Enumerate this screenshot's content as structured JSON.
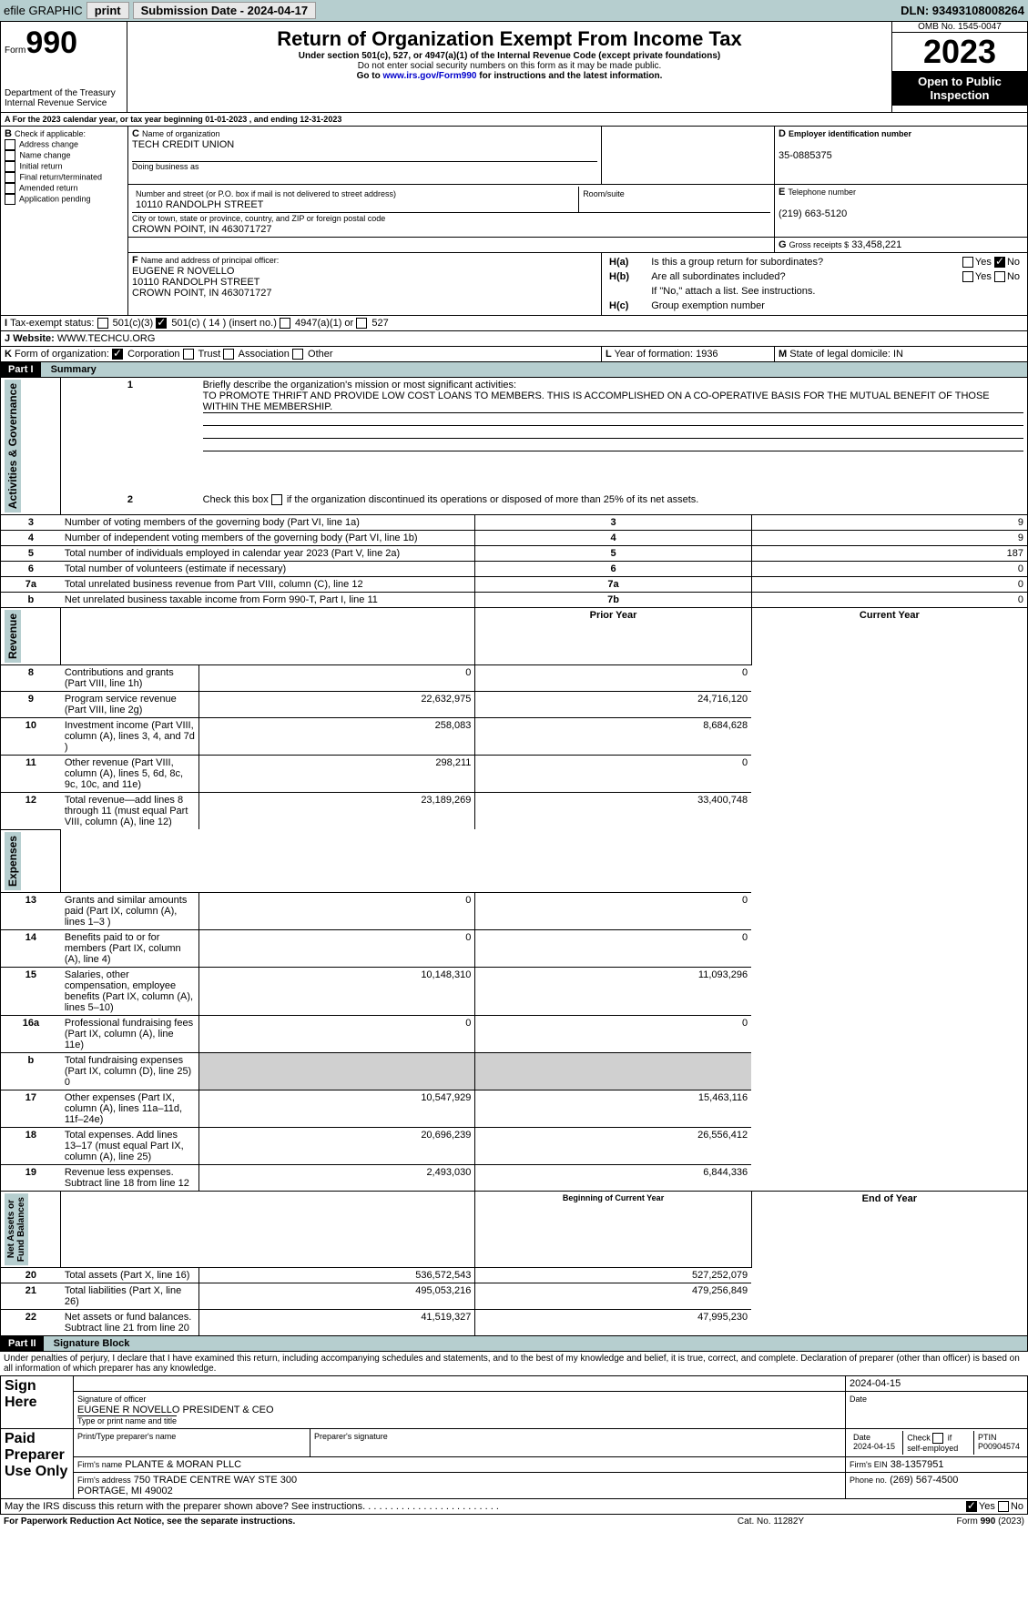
{
  "topbar": {
    "efile": "efile GRAPHIC",
    "print": "print",
    "submission": "Submission Date - 2024-04-17",
    "dln": "DLN: 93493108008264"
  },
  "header": {
    "form_word": "Form",
    "form_num": "990",
    "title": "Return of Organization Exempt From Income Tax",
    "subtitle": "Under section 501(c), 527, or 4947(a)(1) of the Internal Revenue Code (except private foundations)",
    "warn": "Do not enter social security numbers on this form as it may be made public.",
    "goto": "Go to ",
    "goto_link": "www.irs.gov/Form990",
    "goto_rest": " for instructions and the latest information.",
    "dept": "Department of the Treasury\nInternal Revenue Service",
    "omb": "OMB No. 1545-0047",
    "year": "2023",
    "open": "Open to Public\nInspection"
  },
  "A": {
    "text": "For the 2023 calendar year, or tax year beginning 01-01-2023    , and ending 12-31-2023"
  },
  "B": {
    "label": "Check if applicable:",
    "items": [
      "Address change",
      "Name change",
      "Initial return",
      "Final return/terminated",
      "Amended return",
      "Application pending"
    ]
  },
  "C": {
    "name_lbl": "Name of organization",
    "name": "TECH CREDIT UNION",
    "dba_lbl": "Doing business as",
    "addr_lbl": "Number and street (or P.O. box if mail is not delivered to street address)",
    "room_lbl": "Room/suite",
    "addr": "10110 RANDOLPH STREET",
    "city_lbl": "City or town, state or province, country, and ZIP or foreign postal code",
    "city": "CROWN POINT, IN  463071727"
  },
  "D": {
    "lbl": "Employer identification number",
    "val": "35-0885375"
  },
  "E": {
    "lbl": "Telephone number",
    "val": "(219) 663-5120"
  },
  "G": {
    "lbl": "Gross receipts $",
    "val": "33,458,221"
  },
  "F": {
    "lbl": "Name and address of principal officer:",
    "lines": [
      "EUGENE R NOVELLO",
      "10110 RANDOLPH STREET",
      "CROWN POINT, IN  463071727"
    ]
  },
  "H": {
    "a": "Is this a group return for subordinates?",
    "b": "Are all subordinates included?",
    "b_note": "If \"No,\" attach a list. See instructions.",
    "c": "Group exemption number",
    "yes": "Yes",
    "no": "No"
  },
  "I": {
    "lbl": "Tax-exempt status:",
    "o1": "501(c)(3)",
    "o2": "501(c) ( 14 ) (insert no.)",
    "o3": "4947(a)(1) or",
    "o4": "527"
  },
  "J": {
    "lbl": "Website:",
    "val": "WWW.TECHCU.ORG"
  },
  "K": {
    "lbl": "Form of organization:",
    "o1": "Corporation",
    "o2": "Trust",
    "o3": "Association",
    "o4": "Other"
  },
  "L": {
    "lbl": "Year of formation:",
    "val": "1936"
  },
  "M": {
    "lbl": "State of legal domicile:",
    "val": "IN"
  },
  "part1": {
    "hdr": "Part I",
    "title": "Summary",
    "l1_lbl": "Briefly describe the organization's mission or most significant activities:",
    "l1_val": "TO PROMOTE THRIFT AND PROVIDE LOW COST LOANS TO MEMBERS. THIS IS ACCOMPLISHED ON A CO-OPERATIVE BASIS FOR THE MUTUAL BENEFIT OF THOSE WITHIN THE MEMBERSHIP.",
    "l2": "Check this box       if the organization discontinued its operations or disposed of more than 25% of its net assets.",
    "rows_ag": [
      {
        "n": "3",
        "t": "Number of voting members of the governing body (Part VI, line 1a)",
        "box": "3",
        "v": "9"
      },
      {
        "n": "4",
        "t": "Number of independent voting members of the governing body (Part VI, line 1b)",
        "box": "4",
        "v": "9"
      },
      {
        "n": "5",
        "t": "Total number of individuals employed in calendar year 2023 (Part V, line 2a)",
        "box": "5",
        "v": "187"
      },
      {
        "n": "6",
        "t": "Total number of volunteers (estimate if necessary)",
        "box": "6",
        "v": "0"
      },
      {
        "n": "7a",
        "t": "Total unrelated business revenue from Part VIII, column (C), line 12",
        "box": "7a",
        "v": "0"
      },
      {
        "n": "",
        "t": "Net unrelated business taxable income from Form 990-T, Part I, line 11",
        "box": "7b",
        "v": "0"
      }
    ],
    "py": "Prior Year",
    "cy": "Current Year",
    "rev": [
      {
        "n": "8",
        "t": "Contributions and grants (Part VIII, line 1h)",
        "p": "0",
        "c": "0"
      },
      {
        "n": "9",
        "t": "Program service revenue (Part VIII, line 2g)",
        "p": "22,632,975",
        "c": "24,716,120"
      },
      {
        "n": "10",
        "t": "Investment income (Part VIII, column (A), lines 3, 4, and 7d )",
        "p": "258,083",
        "c": "8,684,628"
      },
      {
        "n": "11",
        "t": "Other revenue (Part VIII, column (A), lines 5, 6d, 8c, 9c, 10c, and 11e)",
        "p": "298,211",
        "c": "0"
      },
      {
        "n": "12",
        "t": "Total revenue—add lines 8 through 11 (must equal Part VIII, column (A), line 12)",
        "p": "23,189,269",
        "c": "33,400,748"
      }
    ],
    "exp": [
      {
        "n": "13",
        "t": "Grants and similar amounts paid (Part IX, column (A), lines 1–3 )",
        "p": "0",
        "c": "0"
      },
      {
        "n": "14",
        "t": "Benefits paid to or for members (Part IX, column (A), line 4)",
        "p": "0",
        "c": "0"
      },
      {
        "n": "15",
        "t": "Salaries, other compensation, employee benefits (Part IX, column (A), lines 5–10)",
        "p": "10,148,310",
        "c": "11,093,296"
      },
      {
        "n": "16a",
        "t": "Professional fundraising fees (Part IX, column (A), line 11e)",
        "p": "0",
        "c": "0"
      },
      {
        "n": "b",
        "t": "Total fundraising expenses (Part IX, column (D), line 25) 0",
        "p": "",
        "c": "",
        "shade": true
      },
      {
        "n": "17",
        "t": "Other expenses (Part IX, column (A), lines 11a–11d, 11f–24e)",
        "p": "10,547,929",
        "c": "15,463,116"
      },
      {
        "n": "18",
        "t": "Total expenses. Add lines 13–17 (must equal Part IX, column (A), line 25)",
        "p": "20,696,239",
        "c": "26,556,412"
      },
      {
        "n": "19",
        "t": "Revenue less expenses. Subtract line 18 from line 12",
        "p": "2,493,030",
        "c": "6,844,336"
      }
    ],
    "boy": "Beginning of Current Year",
    "eoy": "End of Year",
    "na": [
      {
        "n": "20",
        "t": "Total assets (Part X, line 16)",
        "p": "536,572,543",
        "c": "527,252,079"
      },
      {
        "n": "21",
        "t": "Total liabilities (Part X, line 26)",
        "p": "495,053,216",
        "c": "479,256,849"
      },
      {
        "n": "22",
        "t": "Net assets or fund balances. Subtract line 21 from line 20",
        "p": "41,519,327",
        "c": "47,995,230"
      }
    ],
    "side_ag": "Activities & Governance",
    "side_rev": "Revenue",
    "side_exp": "Expenses",
    "side_na": "Net Assets or\nFund Balances"
  },
  "part2": {
    "hdr": "Part II",
    "title": "Signature Block",
    "decl": "Under penalties of perjury, I declare that I have examined this return, including accompanying schedules and statements, and to the best of my knowledge and belief, it is true, correct, and complete. Declaration of preparer (other than officer) is based on all information of which preparer has any knowledge.",
    "sign_here": "Sign Here",
    "sig_lbl": "Signature of officer",
    "sig_name": "EUGENE R NOVELLO  PRESIDENT & CEO",
    "type_lbl": "Type or print name and title",
    "date_lbl": "Date",
    "date_val": "2024-04-15",
    "paid": "Paid Preparer Use Only",
    "prep_name_lbl": "Print/Type preparer's name",
    "prep_sig_lbl": "Preparer's signature",
    "prep_date": "2024-04-15",
    "chk_self": "Check        if self-employed",
    "ptin_lbl": "PTIN",
    "ptin": "P00904574",
    "firm_name_lbl": "Firm's name",
    "firm_name": "PLANTE & MORAN PLLC",
    "firm_ein_lbl": "Firm's EIN",
    "firm_ein": "38-1357951",
    "firm_addr_lbl": "Firm's address",
    "firm_addr": "750 TRADE CENTRE WAY STE 300\nPORTAGE, MI  49002",
    "phone_lbl": "Phone no.",
    "phone": "(269) 567-4500",
    "discuss": "May the IRS discuss this return with the preparer shown above? See instructions."
  },
  "footer": {
    "pra": "For Paperwork Reduction Act Notice, see the separate instructions.",
    "cat": "Cat. No. 11282Y",
    "form": "Form 990 (2023)"
  }
}
